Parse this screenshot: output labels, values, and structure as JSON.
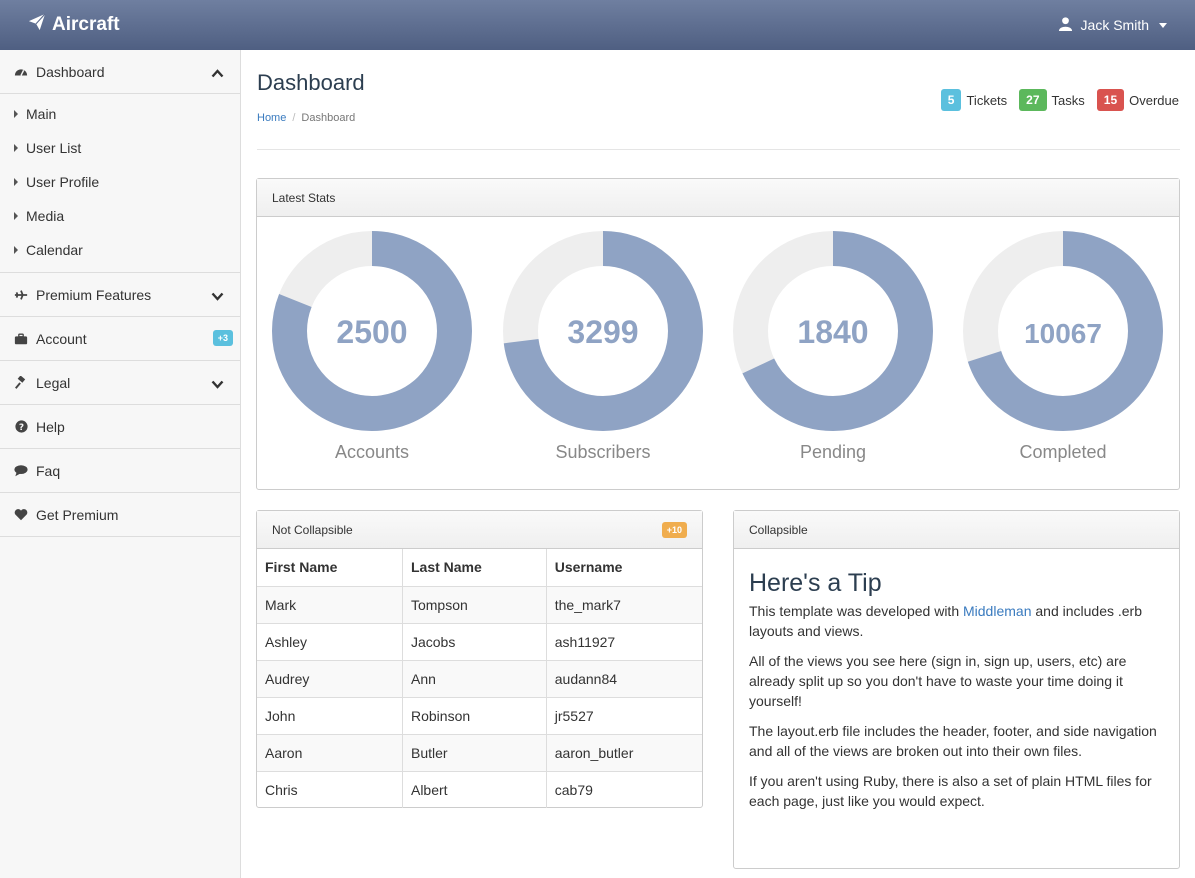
{
  "navbar": {
    "brand": "Aircraft",
    "user": "Jack Smith"
  },
  "sidebar": {
    "dashboard": "Dashboard",
    "sub_items": [
      "Main",
      "User List",
      "User Profile",
      "Media",
      "Calendar"
    ],
    "items": [
      {
        "label": "Premium Features",
        "icon": "plane-icon"
      },
      {
        "label": "Account",
        "icon": "briefcase-icon",
        "badge": "+3"
      },
      {
        "label": "Legal",
        "icon": "gavel-icon"
      },
      {
        "label": "Help",
        "icon": "question-circle-icon"
      },
      {
        "label": "Faq",
        "icon": "comment-icon"
      },
      {
        "label": "Get Premium",
        "icon": "heart-icon"
      }
    ]
  },
  "page": {
    "title": "Dashboard",
    "breadcrumb_home": "Home",
    "breadcrumb_current": "Dashboard"
  },
  "top_stats": [
    {
      "count": "5",
      "label": "Tickets",
      "color": "#5bc0de"
    },
    {
      "count": "27",
      "label": "Tasks",
      "color": "#5cb85c"
    },
    {
      "count": "15",
      "label": "Overdue",
      "color": "#d9534f"
    }
  ],
  "latest_stats": {
    "title": "Latest Stats",
    "donuts": [
      {
        "value": "2500",
        "label": "Accounts",
        "fill": 0.81
      },
      {
        "value": "3299",
        "label": "Subscribers",
        "fill": 0.73
      },
      {
        "value": "1840",
        "label": "Pending",
        "fill": 0.68
      },
      {
        "value": "10067",
        "label": "Completed",
        "fill": 0.7
      }
    ],
    "colors": {
      "fill": "#8fa3c4",
      "track": "#eeeeee"
    }
  },
  "table_panel": {
    "title": "Not Collapsible",
    "badge": "+10",
    "headers": [
      "First Name",
      "Last Name",
      "Username"
    ],
    "rows": [
      [
        "Mark",
        "Tompson",
        "the_mark7"
      ],
      [
        "Ashley",
        "Jacobs",
        "ash11927"
      ],
      [
        "Audrey",
        "Ann",
        "audann84"
      ],
      [
        "John",
        "Robinson",
        "jr5527"
      ],
      [
        "Aaron",
        "Butler",
        "aaron_butler"
      ],
      [
        "Chris",
        "Albert",
        "cab79"
      ]
    ]
  },
  "tip_panel": {
    "title": "Collapsible",
    "heading": "Here's a Tip",
    "p1_before": "This template was developed with ",
    "p1_link": "Middleman",
    "p1_after": " and includes .erb layouts and views.",
    "p2": "All of the views you see here (sign in, sign up, users, etc) are already split up so you don't have to waste your time doing it yourself!",
    "p3": "The layout.erb file includes the header, footer, and side navigation and all of the views are broken out into their own files.",
    "p4": "If you aren't using Ruby, there is also a set of plain HTML files for each page, just like you would expect."
  }
}
